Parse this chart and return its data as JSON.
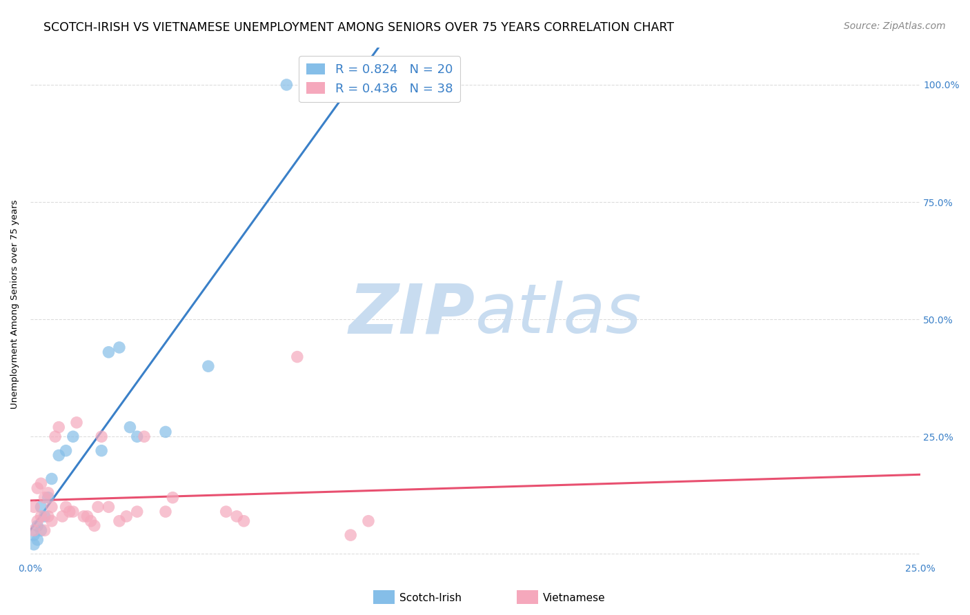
{
  "title": "SCOTCH-IRISH VS VIETNAMESE UNEMPLOYMENT AMONG SENIORS OVER 75 YEARS CORRELATION CHART",
  "source": "Source: ZipAtlas.com",
  "ylabel": "Unemployment Among Seniors over 75 years",
  "xlim": [
    0.0,
    0.25
  ],
  "ylim": [
    -0.015,
    1.08
  ],
  "xticks": [
    0.0,
    0.05,
    0.1,
    0.15,
    0.2,
    0.25
  ],
  "xticklabels": [
    "0.0%",
    "",
    "",
    "",
    "",
    "25.0%"
  ],
  "yticks_right": [
    0.0,
    0.25,
    0.5,
    0.75,
    1.0
  ],
  "ytick_right_labels": [
    "",
    "25.0%",
    "50.0%",
    "75.0%",
    "100.0%"
  ],
  "scotch_irish_R": 0.824,
  "scotch_irish_N": 20,
  "vietnamese_R": 0.436,
  "vietnamese_N": 38,
  "scotch_irish_color": "#85BEE8",
  "vietnamese_color": "#F5A8BC",
  "scotch_irish_line_color": "#3A80C8",
  "vietnamese_line_color": "#E85070",
  "legend_text_color": "#3A80C8",
  "watermark_color": "#C8DCF0",
  "scotch_irish_x": [
    0.001,
    0.001,
    0.002,
    0.002,
    0.003,
    0.003,
    0.004,
    0.005,
    0.006,
    0.008,
    0.01,
    0.012,
    0.02,
    0.022,
    0.025,
    0.028,
    0.03,
    0.038,
    0.05,
    0.072
  ],
  "scotch_irish_y": [
    0.02,
    0.04,
    0.03,
    0.06,
    0.05,
    0.1,
    0.08,
    0.12,
    0.16,
    0.21,
    0.22,
    0.25,
    0.22,
    0.43,
    0.44,
    0.27,
    0.25,
    0.26,
    0.4,
    1.0
  ],
  "vietnamese_x": [
    0.001,
    0.001,
    0.002,
    0.002,
    0.003,
    0.003,
    0.004,
    0.004,
    0.005,
    0.005,
    0.006,
    0.006,
    0.007,
    0.008,
    0.009,
    0.01,
    0.011,
    0.012,
    0.013,
    0.015,
    0.016,
    0.017,
    0.018,
    0.019,
    0.02,
    0.022,
    0.025,
    0.027,
    0.03,
    0.032,
    0.038,
    0.04,
    0.055,
    0.058,
    0.06,
    0.075,
    0.09,
    0.095
  ],
  "vietnamese_y": [
    0.05,
    0.1,
    0.07,
    0.14,
    0.08,
    0.15,
    0.05,
    0.12,
    0.08,
    0.13,
    0.07,
    0.1,
    0.25,
    0.27,
    0.08,
    0.1,
    0.09,
    0.09,
    0.28,
    0.08,
    0.08,
    0.07,
    0.06,
    0.1,
    0.25,
    0.1,
    0.07,
    0.08,
    0.09,
    0.25,
    0.09,
    0.12,
    0.09,
    0.08,
    0.07,
    0.42,
    0.04,
    0.07
  ],
  "background_color": "#FFFFFF",
  "grid_color": "#DCDCDC",
  "title_fontsize": 12.5,
  "axis_label_fontsize": 9.5,
  "tick_fontsize": 10,
  "legend_fontsize": 13,
  "source_fontsize": 10,
  "bottom_legend_items": [
    "Scotch-Irish",
    "Vietnamese"
  ]
}
